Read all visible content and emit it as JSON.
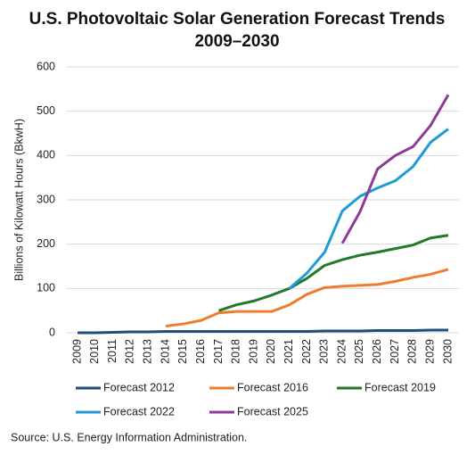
{
  "chart_data": {
    "type": "line",
    "title": "U.S. Photovoltaic Solar Generation Forecast Trends",
    "subtitle": "2009–2030",
    "y_label": "Billions of Kilowatt Hours (BkwH)",
    "source": "Source: U.S. Energy Information Administration.",
    "categories": [
      "2009",
      "2010",
      "2011",
      "2012",
      "2013",
      "2014",
      "2015",
      "2016",
      "2017",
      "2018",
      "2019",
      "2020",
      "2021",
      "2022",
      "2023",
      "2024",
      "2025",
      "2026",
      "2027",
      "2028",
      "2029",
      "2030"
    ],
    "ylim": [
      0,
      600
    ],
    "yticks": [
      0,
      100,
      200,
      300,
      400,
      500,
      600
    ],
    "grid": true,
    "series": [
      {
        "name": "Forecast 2012",
        "color": "#1f4e79",
        "values": [
          0,
          0,
          1,
          2,
          2,
          3,
          3,
          3,
          3,
          3,
          3,
          3,
          3,
          3,
          4,
          4,
          4,
          5,
          5,
          5,
          6,
          6
        ]
      },
      {
        "name": "Forecast 2016",
        "color": "#ed7d31",
        "values": [
          null,
          null,
          null,
          null,
          null,
          15,
          20,
          28,
          45,
          48,
          48,
          48,
          63,
          87,
          102,
          105,
          107,
          109,
          116,
          125,
          132,
          143
        ]
      },
      {
        "name": "Forecast 2019",
        "color": "#217a2b",
        "values": [
          null,
          null,
          null,
          null,
          null,
          null,
          null,
          null,
          50,
          63,
          72,
          85,
          100,
          123,
          152,
          165,
          175,
          182,
          190,
          198,
          214,
          220
        ]
      },
      {
        "name": "Forecast 2022",
        "color": "#1f9bd7",
        "values": [
          null,
          null,
          null,
          null,
          null,
          null,
          null,
          null,
          null,
          null,
          null,
          null,
          100,
          135,
          182,
          275,
          308,
          327,
          343,
          375,
          430,
          460
        ]
      },
      {
        "name": "Forecast 2025",
        "color": "#8e3a96",
        "values": [
          null,
          null,
          null,
          null,
          null,
          null,
          null,
          null,
          null,
          null,
          null,
          null,
          null,
          null,
          null,
          202,
          273,
          370,
          400,
          420,
          468,
          537
        ]
      }
    ]
  }
}
